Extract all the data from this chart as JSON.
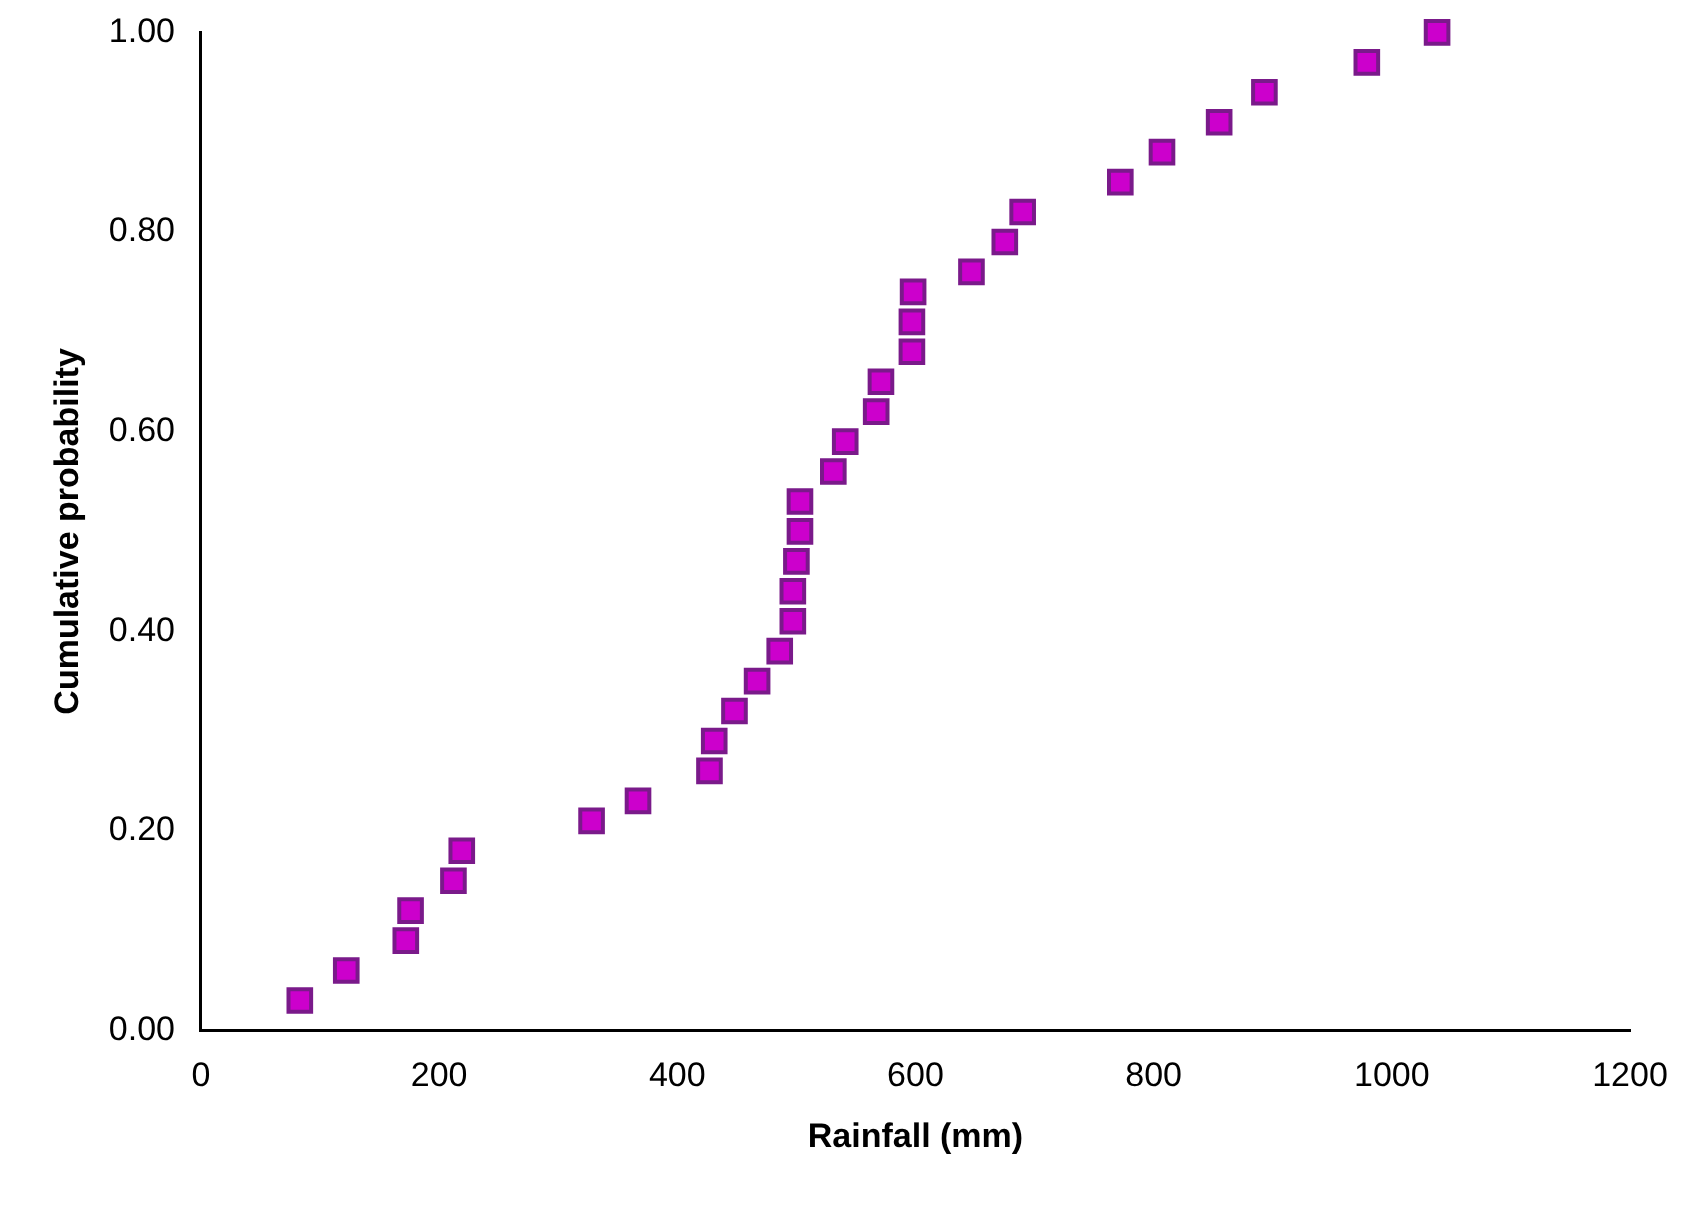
{
  "chart_data": {
    "type": "scatter",
    "xlabel": "Rainfall (mm)",
    "ylabel": "Cumulative probability",
    "marker": "square",
    "grid": false,
    "legend": false,
    "xlim": [
      0,
      1200
    ],
    "xticks": [
      0,
      200,
      400,
      600,
      800,
      1000,
      1200
    ],
    "ylim": [
      0,
      1
    ],
    "yticks": [
      {
        "value": 0,
        "label": "0.00"
      },
      {
        "value": 0.2,
        "label": "0.20"
      },
      {
        "value": 0.4,
        "label": "0.40"
      },
      {
        "value": 0.6,
        "label": "0.60"
      },
      {
        "value": 0.8,
        "label": "0.80"
      },
      {
        "value": 1,
        "label": "1.00"
      }
    ],
    "series": [
      {
        "color": "#cc00cc",
        "x": [
          83,
          122,
          172,
          176,
          212,
          219,
          328,
          367,
          427,
          431,
          448,
          467,
          486,
          497,
          497,
          500,
          503,
          503,
          531,
          541,
          567,
          571,
          597,
          597,
          598,
          647,
          675,
          690,
          772,
          807,
          855,
          893,
          979,
          1038
        ],
        "values": [
          0.03,
          0.06,
          0.09,
          0.12,
          0.15,
          0.18,
          0.21,
          0.23,
          0.26,
          0.29,
          0.32,
          0.35,
          0.38,
          0.41,
          0.44,
          0.47,
          0.5,
          0.53,
          0.56,
          0.59,
          0.62,
          0.65,
          0.68,
          0.71,
          0.74,
          0.76,
          0.79,
          0.82,
          0.85,
          0.88,
          0.91,
          0.94,
          0.97,
          1.0
        ]
      }
    ]
  }
}
